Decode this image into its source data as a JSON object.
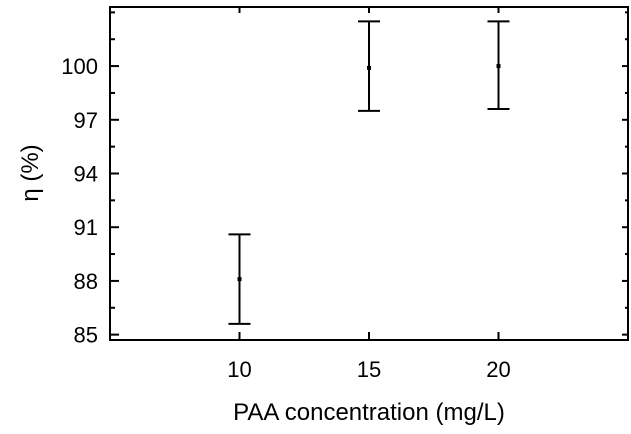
{
  "chart_data": {
    "type": "scatter",
    "title": "",
    "xlabel": "PAA concentration (mg/L)",
    "ylabel": "η (%)",
    "x_ticks": [
      "10",
      "15",
      "20"
    ],
    "y_ticks": [
      "85",
      "88",
      "91",
      "94",
      "97",
      "100"
    ],
    "xlim": [
      5,
      25
    ],
    "ylim": [
      84.7,
      103.3
    ],
    "grid": false,
    "points": [
      {
        "x": 10,
        "y": 88.1,
        "err_low": 85.6,
        "err_high": 90.6
      },
      {
        "x": 15,
        "y": 99.9,
        "err_low": 97.5,
        "err_high": 102.5
      },
      {
        "x": 20,
        "y": 100.0,
        "err_low": 97.6,
        "err_high": 102.5
      }
    ],
    "colors": {
      "marks": "#000000",
      "background": "#ffffff"
    }
  }
}
